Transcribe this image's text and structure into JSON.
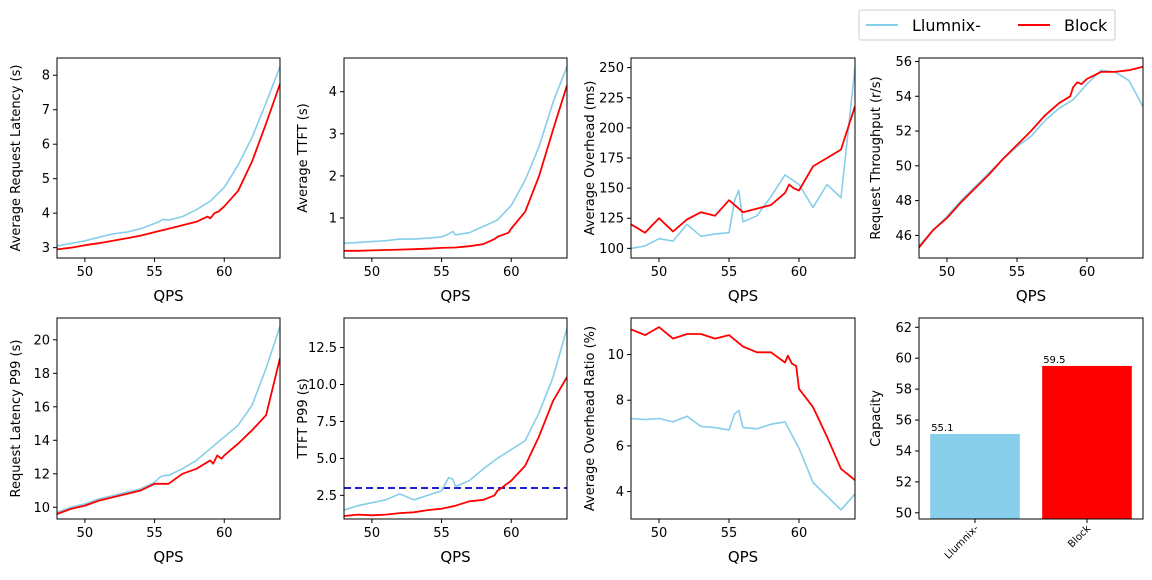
{
  "colors": {
    "llumnix": "#87CEEB",
    "block": "#FF0000",
    "baseline": "#0000CC"
  },
  "legend": {
    "placement": "top-right",
    "entries": [
      "Llumnix-",
      "Block"
    ]
  },
  "chart_data": [
    {
      "type": "line",
      "xlabel": "QPS",
      "ylabel": "Average Request Latency (s)",
      "xlim": [
        48,
        64
      ],
      "ylim": [
        2.7,
        8.5
      ],
      "xticks": [
        50,
        55,
        60
      ],
      "yticks": [
        3,
        4,
        5,
        6,
        7,
        8
      ],
      "series": [
        {
          "name": "Llumnix-",
          "x": [
            48,
            49,
            50,
            51,
            52,
            53,
            54,
            55,
            55.3,
            55.6,
            56,
            57,
            58,
            59,
            60,
            61,
            62,
            63,
            64
          ],
          "values": [
            3.05,
            3.12,
            3.2,
            3.3,
            3.4,
            3.45,
            3.55,
            3.7,
            3.75,
            3.82,
            3.8,
            3.9,
            4.1,
            4.35,
            4.75,
            5.4,
            6.2,
            7.2,
            8.25
          ]
        },
        {
          "name": "Block",
          "x": [
            48,
            49,
            50,
            51,
            52,
            53,
            54,
            55,
            56,
            57,
            58,
            58.8,
            59,
            59.3,
            59.6,
            60,
            61,
            62,
            63,
            64
          ],
          "values": [
            2.95,
            3.0,
            3.07,
            3.13,
            3.2,
            3.27,
            3.35,
            3.45,
            3.55,
            3.65,
            3.75,
            3.9,
            3.85,
            4.0,
            4.05,
            4.2,
            4.65,
            5.5,
            6.6,
            7.75
          ]
        }
      ]
    },
    {
      "type": "line",
      "xlabel": "QPS",
      "ylabel": "Average TTFT (s)",
      "xlim": [
        48,
        64
      ],
      "ylim": [
        0.05,
        4.8
      ],
      "xticks": [
        50,
        55,
        60
      ],
      "yticks": [
        1,
        2,
        3,
        4
      ],
      "series": [
        {
          "name": "Llumnix-",
          "x": [
            48,
            49,
            50,
            51,
            52,
            53,
            54,
            55,
            55.5,
            55.8,
            56,
            57,
            58,
            59,
            60,
            61,
            62,
            63,
            64
          ],
          "values": [
            0.4,
            0.42,
            0.44,
            0.46,
            0.5,
            0.5,
            0.52,
            0.55,
            0.62,
            0.68,
            0.6,
            0.65,
            0.8,
            0.95,
            1.3,
            1.9,
            2.7,
            3.75,
            4.6
          ]
        },
        {
          "name": "Block",
          "x": [
            48,
            49,
            50,
            51,
            52,
            53,
            54,
            55,
            56,
            57,
            58,
            58.8,
            59,
            59.4,
            59.8,
            60,
            61,
            62,
            63,
            64
          ],
          "values": [
            0.22,
            0.22,
            0.23,
            0.24,
            0.25,
            0.26,
            0.27,
            0.29,
            0.3,
            0.33,
            0.38,
            0.5,
            0.55,
            0.6,
            0.65,
            0.75,
            1.15,
            2.0,
            3.1,
            4.15
          ]
        }
      ]
    },
    {
      "type": "line",
      "xlabel": "QPS",
      "ylabel": "Average Overhead (ms)",
      "xlim": [
        48,
        64
      ],
      "ylim": [
        92,
        258
      ],
      "xticks": [
        50,
        55,
        60
      ],
      "yticks": [
        100,
        125,
        150,
        175,
        200,
        225,
        250
      ],
      "series": [
        {
          "name": "Llumnix-",
          "x": [
            48,
            49,
            50,
            51,
            52,
            53,
            54,
            55,
            55.4,
            55.7,
            56,
            57,
            58,
            59,
            60,
            61,
            62,
            63,
            64
          ],
          "values": [
            100,
            102,
            108,
            106,
            120,
            110,
            112,
            113,
            140,
            148,
            122,
            127,
            143,
            161,
            153,
            134,
            153,
            142,
            250
          ]
        },
        {
          "name": "Block",
          "x": [
            48,
            49,
            50,
            51,
            52,
            53,
            54,
            55,
            56,
            57,
            58,
            59,
            59.3,
            59.6,
            60,
            61,
            62,
            63,
            64
          ],
          "values": [
            120,
            113,
            125,
            114,
            124,
            130,
            127,
            140,
            130,
            133,
            136,
            146,
            153,
            150,
            148,
            168,
            175,
            182,
            218
          ]
        }
      ]
    },
    {
      "type": "line",
      "xlabel": "QPS",
      "ylabel": "Request Throughput (r/s)",
      "xlim": [
        48,
        64
      ],
      "ylim": [
        44.7,
        56.2
      ],
      "xticks": [
        50,
        55,
        60
      ],
      "yticks": [
        46,
        48,
        50,
        52,
        54,
        56
      ],
      "series": [
        {
          "name": "Llumnix-",
          "x": [
            48,
            49,
            50,
            51,
            52,
            53,
            54,
            55,
            56,
            57,
            58,
            59,
            60,
            61,
            62,
            63,
            64
          ],
          "values": [
            45.4,
            46.3,
            47.1,
            48,
            48.8,
            49.6,
            50.4,
            51.1,
            51.7,
            52.6,
            53.3,
            53.8,
            54.7,
            55.5,
            55.4,
            54.9,
            53.4
          ]
        },
        {
          "name": "Block",
          "x": [
            48,
            49,
            50,
            51,
            52,
            53,
            54,
            55,
            56,
            57,
            58,
            58.8,
            59,
            59.3,
            59.6,
            60,
            61,
            62,
            63,
            64
          ],
          "values": [
            45.3,
            46.3,
            47,
            47.9,
            48.7,
            49.5,
            50.4,
            51.2,
            52,
            52.9,
            53.6,
            54,
            54.5,
            54.8,
            54.7,
            55,
            55.4,
            55.4,
            55.5,
            55.7
          ]
        }
      ]
    },
    {
      "type": "line",
      "xlabel": "QPS",
      "ylabel": "Request Latency P99 (s)",
      "xlim": [
        48,
        64
      ],
      "ylim": [
        9.3,
        21.3
      ],
      "xticks": [
        50,
        55,
        60
      ],
      "yticks": [
        10,
        12,
        14,
        16,
        18,
        20
      ],
      "series": [
        {
          "name": "Llumnix-",
          "x": [
            48,
            49,
            50,
            51,
            52,
            53,
            54,
            55,
            55.4,
            55.7,
            56,
            57,
            58,
            59,
            60,
            61,
            62,
            63,
            64
          ],
          "values": [
            9.7,
            10,
            10.2,
            10.5,
            10.7,
            10.9,
            11.1,
            11.5,
            11.8,
            11.9,
            11.9,
            12.3,
            12.8,
            13.5,
            14.2,
            14.9,
            16.1,
            18.3,
            20.8
          ]
        },
        {
          "name": "Block",
          "x": [
            48,
            49,
            50,
            51,
            52,
            53,
            54,
            55,
            56,
            57,
            58,
            59,
            59.2,
            59.5,
            59.8,
            60,
            61,
            62,
            63,
            64
          ],
          "values": [
            9.6,
            9.9,
            10.1,
            10.4,
            10.6,
            10.8,
            11.0,
            11.4,
            11.4,
            12.0,
            12.3,
            12.8,
            12.6,
            13.1,
            12.9,
            13.1,
            13.8,
            14.6,
            15.5,
            18.9
          ]
        }
      ]
    },
    {
      "type": "line",
      "xlabel": "QPS",
      "ylabel": "TTFT P99 (s)",
      "xlim": [
        48,
        64
      ],
      "ylim": [
        0.9,
        14.5
      ],
      "xticks": [
        50,
        55,
        60
      ],
      "yticks": [
        2.5,
        5.0,
        7.5,
        10.0,
        12.5
      ],
      "reference_line": {
        "y": 3.0,
        "style": "dashed"
      },
      "series": [
        {
          "name": "Llumnix-",
          "x": [
            48,
            49,
            50,
            51,
            52,
            53,
            54,
            55,
            55.5,
            55.8,
            56,
            57,
            58,
            59,
            60,
            61,
            62,
            63,
            64
          ],
          "values": [
            1.5,
            1.8,
            2.0,
            2.2,
            2.6,
            2.2,
            2.5,
            2.8,
            3.7,
            3.6,
            3.1,
            3.5,
            4.3,
            5.0,
            5.6,
            6.2,
            8.1,
            10.5,
            13.8
          ]
        },
        {
          "name": "Block",
          "x": [
            48,
            49,
            50,
            51,
            52,
            53,
            54,
            55,
            56,
            57,
            58,
            58.8,
            59,
            59.3,
            60,
            61,
            62,
            63,
            64
          ],
          "values": [
            1.1,
            1.2,
            1.15,
            1.2,
            1.3,
            1.35,
            1.5,
            1.6,
            1.8,
            2.1,
            2.2,
            2.5,
            2.8,
            3.0,
            3.5,
            4.5,
            6.5,
            8.9,
            10.5
          ]
        }
      ]
    },
    {
      "type": "line",
      "xlabel": "QPS",
      "ylabel": "Average Overhead Ratio (%)",
      "xlim": [
        48,
        64
      ],
      "ylim": [
        2.8,
        11.6
      ],
      "xticks": [
        50,
        55,
        60
      ],
      "yticks": [
        4,
        6,
        8,
        10
      ],
      "series": [
        {
          "name": "Llumnix-",
          "x": [
            48,
            49,
            50,
            51,
            52,
            53,
            54,
            55,
            55.4,
            55.7,
            56,
            57,
            58,
            59,
            60,
            61,
            62,
            63,
            64
          ],
          "values": [
            7.2,
            7.15,
            7.2,
            7.05,
            7.3,
            6.85,
            6.8,
            6.7,
            7.4,
            7.55,
            6.8,
            6.75,
            6.95,
            7.05,
            5.9,
            4.4,
            3.8,
            3.2,
            3.9
          ]
        },
        {
          "name": "Block",
          "x": [
            48,
            49,
            50,
            51,
            52,
            53,
            54,
            55,
            56,
            57,
            58,
            59,
            59.2,
            59.5,
            59.8,
            60,
            61,
            62,
            63,
            64
          ],
          "values": [
            11.1,
            10.85,
            11.2,
            10.7,
            10.9,
            10.9,
            10.7,
            10.85,
            10.35,
            10.1,
            10.1,
            9.65,
            9.95,
            9.6,
            9.5,
            8.5,
            7.7,
            6.4,
            5.0,
            4.5
          ]
        }
      ]
    },
    {
      "type": "bar",
      "ylabel": "Capacity",
      "categories": [
        "Llumnix-",
        "Block"
      ],
      "values": [
        55.1,
        59.5
      ],
      "value_labels": [
        "55.1",
        "59.5"
      ],
      "ylim": [
        49.6,
        62.6
      ],
      "yticks": [
        50,
        52,
        54,
        56,
        58,
        60,
        62
      ]
    }
  ]
}
